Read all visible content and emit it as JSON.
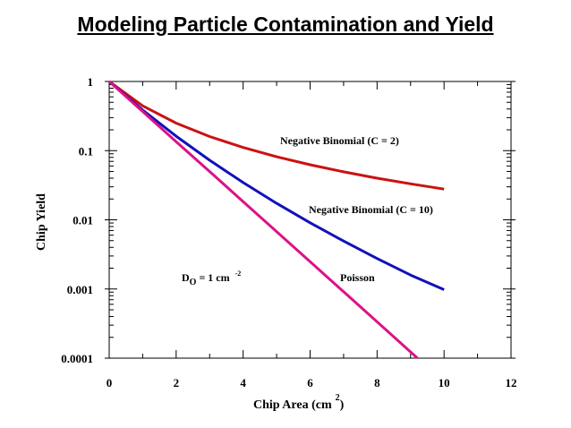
{
  "page": {
    "title": "Modeling Particle Contamination and Yield"
  },
  "chart_data": {
    "type": "line",
    "xlabel": "Chip Area (cm",
    "xlabel_sup": "2",
    "xlabel_suffix": ")",
    "ylabel": "Chip Yield",
    "xlim": [
      0,
      12
    ],
    "ylim": [
      0.0001,
      1
    ],
    "yscale": "log",
    "grid": false,
    "x_ticks": [
      {
        "value": 0,
        "label": "0"
      },
      {
        "value": 2,
        "label": "2"
      },
      {
        "value": 4,
        "label": "4"
      },
      {
        "value": 6,
        "label": "6"
      },
      {
        "value": 8,
        "label": "8"
      },
      {
        "value": 10,
        "label": "10"
      },
      {
        "value": 12,
        "label": "12"
      }
    ],
    "y_ticks": [
      {
        "value": 1,
        "label": "1"
      },
      {
        "value": 0.1,
        "label": "0.1"
      },
      {
        "value": 0.01,
        "label": "0.01"
      },
      {
        "value": 0.001,
        "label": "0.001"
      },
      {
        "value": 0.0001,
        "label": "0.0001"
      }
    ],
    "series": [
      {
        "name": "Negative Binomial (C = 2)",
        "color": "#cc1111",
        "x": [
          0,
          1,
          2,
          3,
          4,
          5,
          6,
          7,
          8,
          9,
          10
        ],
        "y": [
          1,
          0.444,
          0.25,
          0.16,
          0.111,
          0.0816,
          0.0625,
          0.0494,
          0.04,
          0.0331,
          0.0278
        ]
      },
      {
        "name": "Negative Binomial (C = 10)",
        "color": "#1111bb",
        "x": [
          0,
          1,
          2,
          3,
          4,
          5,
          6,
          7,
          8,
          9,
          10
        ],
        "y": [
          1,
          0.386,
          0.162,
          0.0725,
          0.0346,
          0.0173,
          0.00907,
          0.00493,
          0.00276,
          0.00159,
          0.000977
        ]
      },
      {
        "name": "Poisson",
        "color": "#dd1188",
        "x": [
          0,
          1,
          2,
          3,
          4,
          5,
          6,
          7,
          8,
          9,
          9.2
        ],
        "y": [
          1,
          0.368,
          0.135,
          0.0498,
          0.0183,
          0.00674,
          0.00248,
          0.000912,
          0.000335,
          0.000123,
          0.000101
        ]
      }
    ],
    "annotations": {
      "do_main": "D",
      "do_sub": "O",
      "do_value": " = 1 cm",
      "do_sup": "-2"
    }
  }
}
